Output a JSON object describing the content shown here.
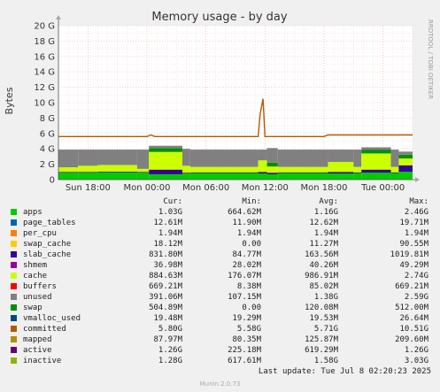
{
  "chart_data": {
    "type": "area",
    "title": "Memory usage - by day",
    "ylabel": "Bytes",
    "side_label": "RRDTOOL / TOBI OETIKER",
    "ylim": [
      0,
      20
    ],
    "yticks": [
      "0",
      "2 G",
      "4 G",
      "6 G",
      "8 G",
      "10 G",
      "12 G",
      "14 G",
      "16 G",
      "18 G",
      "20 G"
    ],
    "x_ticks": [
      "Sun 18:00",
      "Mon 00:00",
      "Mon 06:00",
      "Mon 12:00",
      "Mon 18:00",
      "Tue 00:00"
    ],
    "x_tick_pos": [
      1,
      7,
      13,
      19,
      25,
      31
    ],
    "x_range": [
      -2,
      34
    ],
    "columns": [
      "Cur:",
      "Min:",
      "Avg:",
      "Max:"
    ],
    "series": [
      {
        "name": "apps",
        "color": "#00cc00",
        "cur": "1.03G",
        "min": "664.62M",
        "avg": "1.16G",
        "max": "2.46G"
      },
      {
        "name": "page_tables",
        "color": "#0066b3",
        "cur": "12.61M",
        "min": "11.90M",
        "avg": "12.62M",
        "max": "19.71M"
      },
      {
        "name": "per_cpu",
        "color": "#ff8000",
        "cur": "1.94M",
        "min": "1.94M",
        "avg": "1.94M",
        "max": "1.94M"
      },
      {
        "name": "swap_cache",
        "color": "#ffcc00",
        "cur": "18.12M",
        "min": "0.00",
        "avg": "11.27M",
        "max": "90.55M"
      },
      {
        "name": "slab_cache",
        "color": "#330099",
        "cur": "831.80M",
        "min": "84.77M",
        "avg": "163.56M",
        "max": "1019.81M"
      },
      {
        "name": "shmem",
        "color": "#990099",
        "cur": "36.98M",
        "min": "28.02M",
        "avg": "40.26M",
        "max": "49.29M"
      },
      {
        "name": "cache",
        "color": "#ccff00",
        "cur": "884.63M",
        "min": "176.07M",
        "avg": "986.91M",
        "max": "2.74G"
      },
      {
        "name": "buffers",
        "color": "#ff0000",
        "cur": "669.21M",
        "min": "8.38M",
        "avg": "85.02M",
        "max": "669.21M"
      },
      {
        "name": "unused",
        "color": "#808080",
        "cur": "391.06M",
        "min": "107.15M",
        "avg": "1.38G",
        "max": "2.59G"
      },
      {
        "name": "swap",
        "color": "#008f00",
        "cur": "504.89M",
        "min": "0.00",
        "avg": "120.08M",
        "max": "512.00M"
      },
      {
        "name": "vmalloc_used",
        "color": "#00487d",
        "cur": "19.48M",
        "min": "19.29M",
        "avg": "19.53M",
        "max": "26.64M"
      },
      {
        "name": "committed",
        "color": "#b35a00",
        "cur": "5.80G",
        "min": "5.58G",
        "avg": "5.71G",
        "max": "10.51G"
      },
      {
        "name": "mapped",
        "color": "#b38f00",
        "cur": "87.97M",
        "min": "80.35M",
        "avg": "125.87M",
        "max": "209.60M"
      },
      {
        "name": "active",
        "color": "#6b006b",
        "cur": "1.26G",
        "min": "225.18M",
        "avg": "619.29M",
        "max": "1.26G"
      },
      {
        "name": "inactive",
        "color": "#8fb300",
        "cur": "1.28G",
        "min": "617.61M",
        "avg": "1.58G",
        "max": "3.03G"
      }
    ],
    "stack_order": [
      "apps",
      "page_tables",
      "per_cpu",
      "swap_cache",
      "slab_cache",
      "shmem",
      "cache",
      "buffers",
      "swap",
      "unused"
    ],
    "segments": [
      {
        "x0": -2,
        "x1": 0,
        "apps": 0.9,
        "slab_cache": 0.1,
        "cache": 0.6,
        "swap": 0.0,
        "unused": 2.3
      },
      {
        "x0": 0,
        "x1": 2,
        "apps": 0.9,
        "slab_cache": 0.1,
        "cache": 0.8,
        "swap": 0.0,
        "unused": 2.1
      },
      {
        "x0": 2,
        "x1": 6,
        "apps": 0.95,
        "slab_cache": 0.1,
        "cache": 0.85,
        "swap": 0.0,
        "unused": 2.0
      },
      {
        "x0": 6,
        "x1": 7.2,
        "apps": 0.9,
        "slab_cache": 0.1,
        "cache": 0.4,
        "swap": 0.0,
        "unused": 2.5
      },
      {
        "x0": 7.2,
        "x1": 10.6,
        "apps": 0.7,
        "slab_cache": 0.6,
        "cache": 2.3,
        "swap": 0.5,
        "unused": 0.3
      },
      {
        "x0": 10.6,
        "x1": 11.4,
        "apps": 0.8,
        "slab_cache": 0.1,
        "cache": 0.9,
        "swap": 0.0,
        "unused": 2.2
      },
      {
        "x0": 11.4,
        "x1": 18.3,
        "apps": 0.85,
        "slab_cache": 0.1,
        "cache": 0.7,
        "swap": 0.0,
        "unused": 2.25
      },
      {
        "x0": 18.3,
        "x1": 19.2,
        "apps": 0.8,
        "slab_cache": 0.2,
        "cache": 1.5,
        "swap": 0.0,
        "unused": 1.4
      },
      {
        "x0": 19.2,
        "x1": 20.3,
        "apps": 0.7,
        "slab_cache": 0.2,
        "cache": 0.8,
        "swap": 0.5,
        "unused": 1.9
      },
      {
        "x0": 20.3,
        "x1": 25.4,
        "apps": 0.85,
        "slab_cache": 0.1,
        "cache": 0.7,
        "swap": 0.0,
        "unused": 2.25
      },
      {
        "x0": 25.4,
        "x1": 28.0,
        "apps": 0.8,
        "slab_cache": 0.2,
        "cache": 1.3,
        "swap": 0.0,
        "unused": 1.6
      },
      {
        "x0": 28.0,
        "x1": 28.8,
        "apps": 0.85,
        "slab_cache": 0.1,
        "cache": 0.7,
        "swap": 0.0,
        "unused": 2.25
      },
      {
        "x0": 28.8,
        "x1": 31.8,
        "apps": 0.9,
        "slab_cache": 0.4,
        "cache": 2.1,
        "swap": 0.5,
        "unused": 0.3
      },
      {
        "x0": 31.8,
        "x1": 32.6,
        "apps": 0.85,
        "slab_cache": 0.1,
        "cache": 0.7,
        "swap": 0.0,
        "unused": 2.25
      },
      {
        "x0": 32.6,
        "x1": 34.0,
        "apps": 1.03,
        "slab_cache": 0.83,
        "cache": 0.88,
        "swap": 0.5,
        "unused": 0.4
      }
    ],
    "committed_line": [
      [
        -2,
        5.6
      ],
      [
        7.0,
        5.6
      ],
      [
        7.4,
        5.8
      ],
      [
        7.8,
        5.6
      ],
      [
        18.0,
        5.6
      ],
      [
        18.3,
        5.6
      ],
      [
        18.5,
        8.5
      ],
      [
        18.8,
        10.5
      ],
      [
        19.0,
        5.6
      ],
      [
        25.0,
        5.6
      ],
      [
        25.4,
        5.8
      ],
      [
        34.0,
        5.8
      ]
    ],
    "last_update": "Last update: Tue Jul  8 02:20:23 2025",
    "footer": "Munin 2.0.73"
  }
}
